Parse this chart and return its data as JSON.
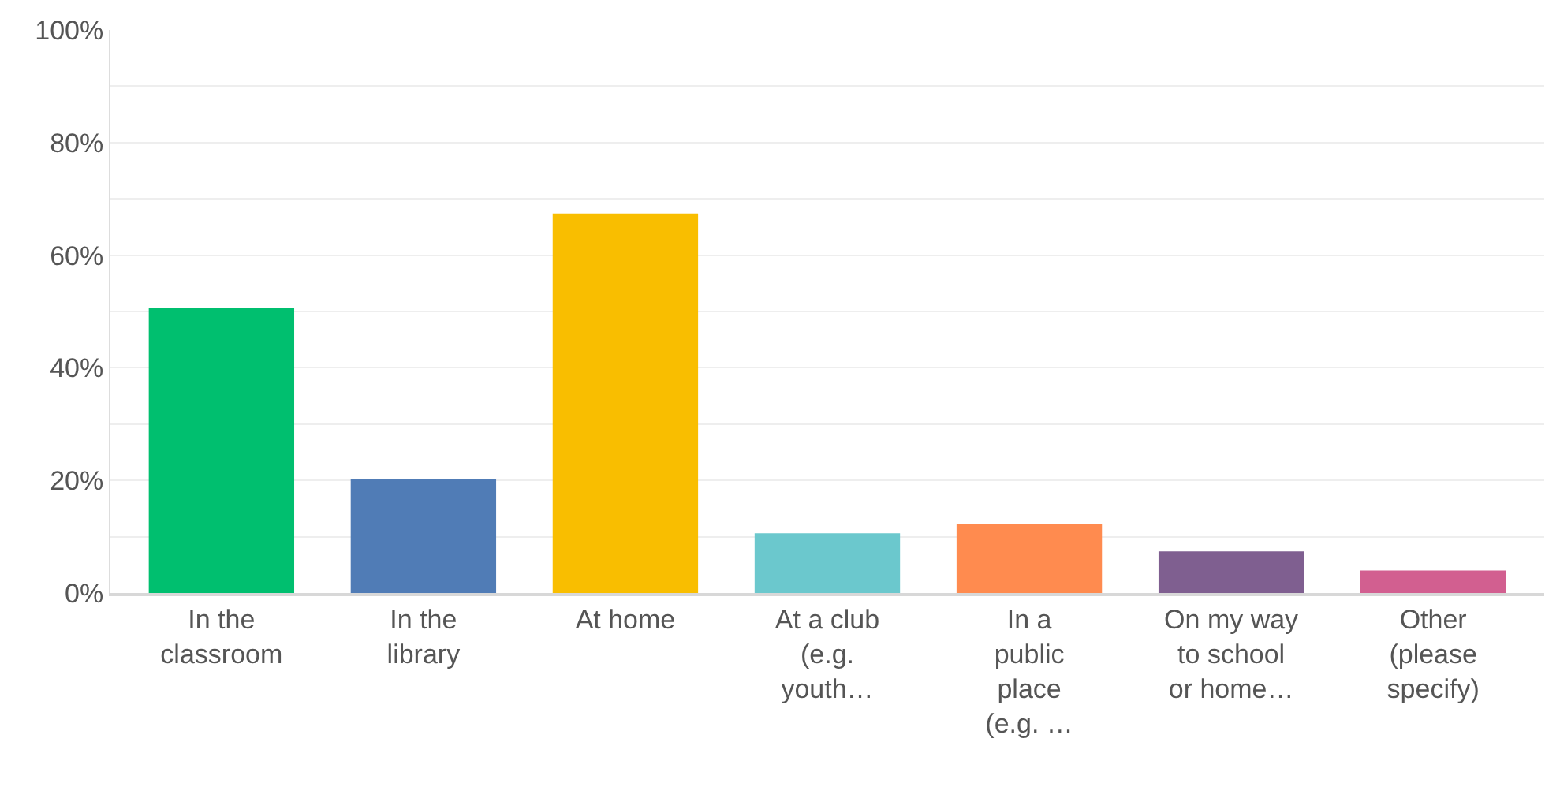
{
  "chart_data": {
    "type": "bar",
    "categories": [
      "In the classroom",
      "In the library",
      "At home",
      "At a club (e.g. youth…",
      "In a public place (e.g. …",
      "On my way to school or home…",
      "Other (please specify)"
    ],
    "values": [
      50.7,
      20.2,
      67.4,
      10.6,
      12.3,
      7.4,
      4.0
    ],
    "colors": [
      "#00bf6f",
      "#507cb6",
      "#f9be00",
      "#6bc8cd",
      "#ff8b4f",
      "#7f5f90",
      "#d25f90"
    ],
    "ylim": [
      0,
      100
    ],
    "yticks": [
      {
        "value": 0,
        "label": "0%"
      },
      {
        "value": 10,
        "label": null
      },
      {
        "value": 20,
        "label": "20%"
      },
      {
        "value": 30,
        "label": null
      },
      {
        "value": 40,
        "label": "40%"
      },
      {
        "value": 50,
        "label": null
      },
      {
        "value": 60,
        "label": "60%"
      },
      {
        "value": 70,
        "label": null
      },
      {
        "value": 80,
        "label": "80%"
      },
      {
        "value": 90,
        "label": null
      },
      {
        "value": 100,
        "label": "100%"
      }
    ],
    "grid": "y",
    "legend": false
  }
}
